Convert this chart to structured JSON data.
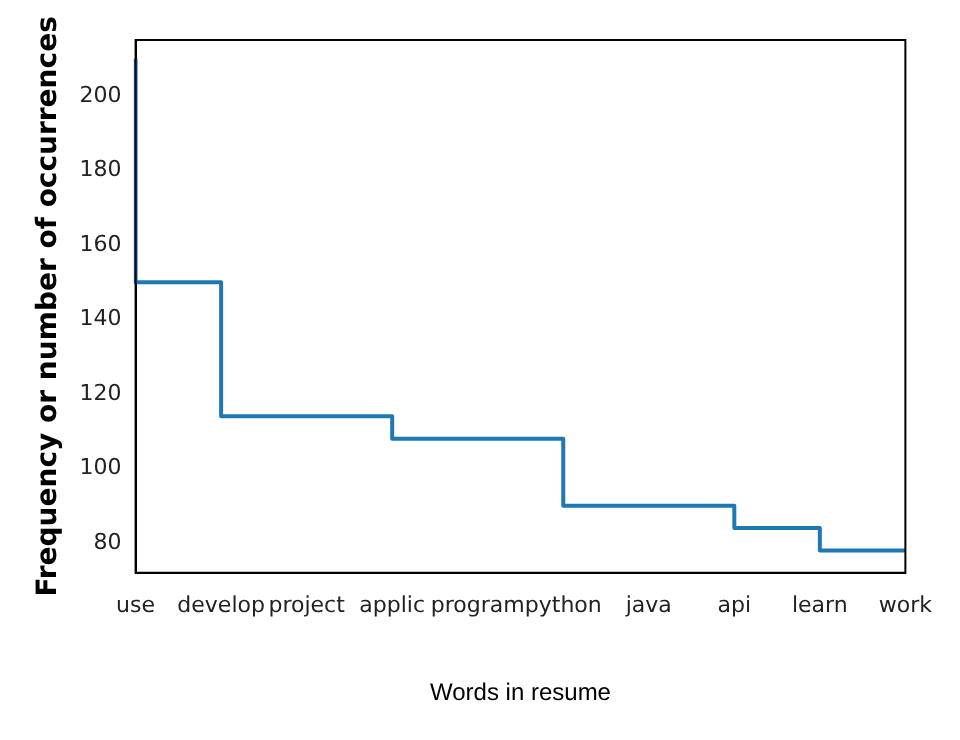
{
  "chart_data": {
    "type": "step",
    "xlabel": "Words in resume",
    "ylabel": "Frequency or number of occurrences",
    "categories": [
      "use",
      "develop",
      "project",
      "applic",
      "program",
      "python",
      "java",
      "api",
      "learn",
      "work"
    ],
    "series": [
      {
        "color": "#1f77b4",
        "values": [
          210,
          150,
          114,
          114,
          108,
          108,
          90,
          90,
          84,
          78
        ]
      }
    ],
    "ylim": [
      72,
      215
    ],
    "yticks": [
      80,
      100,
      120,
      140,
      160,
      180,
      200
    ],
    "grid": false,
    "legend": false
  }
}
